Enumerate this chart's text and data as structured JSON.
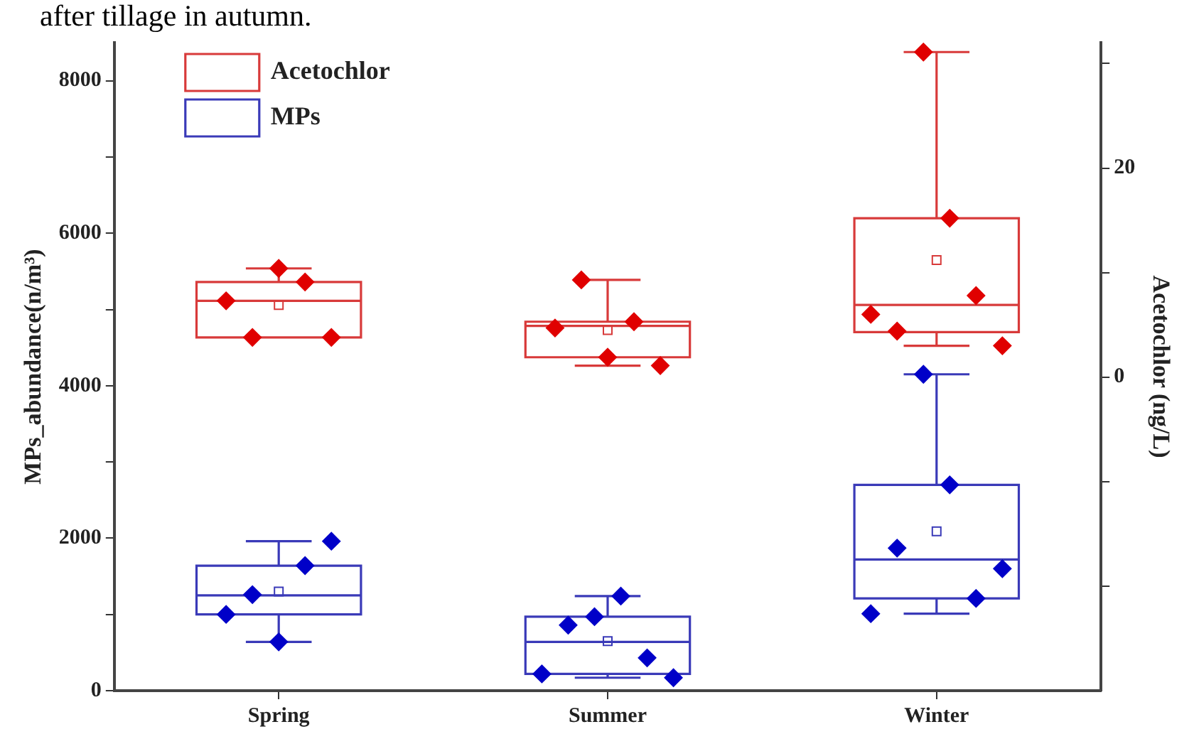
{
  "chart_data": {
    "type": "box",
    "annotations": [
      "after tillage in autumn."
    ],
    "ylabel": "MPs_abundance(n/m³)",
    "y2label": "Acetochlor (ng/L)",
    "categories": [
      "Spring",
      "Summer",
      "Winter"
    ],
    "ylim": [
      0,
      8500
    ],
    "yticks": [
      0,
      {
        "value": 1000,
        "label": null
      },
      2000,
      {
        "value": 3000,
        "label": null
      },
      4000,
      {
        "value": 5000,
        "label": null
      },
      6000,
      {
        "value": 7000,
        "label": null
      },
      8000
    ],
    "y2lim": [
      -30,
      32
    ],
    "y2ticks": [
      {
        "value": -20,
        "label": null
      },
      {
        "value": -10,
        "label": null
      },
      0,
      {
        "value": 10,
        "label": null
      },
      20,
      {
        "value": 30,
        "label": null
      }
    ],
    "grid": false,
    "legend": "top left",
    "marker": "diamond",
    "series": [
      {
        "name": "Acetochlor",
        "axis": "y2",
        "color": "#d83a3a",
        "boxes": [
          {
            "low": 3.8,
            "q1": 3.8,
            "median": 7.3,
            "q3": 9.1,
            "high": 10.4,
            "mean": 6.9
          },
          {
            "low": 1.1,
            "q1": 1.9,
            "median": 4.9,
            "q3": 5.3,
            "high": 9.3,
            "mean": 4.5
          },
          {
            "low": 3.0,
            "q1": 4.3,
            "median": 6.9,
            "q3": 15.2,
            "high": 31.1,
            "mean": 11.2
          }
        ]
      },
      {
        "name": "MPs",
        "color": "#3a3ab8",
        "boxes": [
          {
            "low": 640,
            "q1": 1000,
            "median": 1250,
            "q3": 1640,
            "high": 1960,
            "mean": 1300
          },
          {
            "low": 170,
            "q1": 220,
            "median": 640,
            "q3": 970,
            "high": 1240,
            "mean": 650
          },
          {
            "low": 1010,
            "q1": 1210,
            "median": 1720,
            "q3": 2700,
            "high": 4150,
            "mean": 2090
          }
        ]
      },
      {
        "type": "scatter",
        "axis": "y2",
        "color": "#e00000",
        "x": [
          "Spring",
          "Spring",
          "Spring",
          "Spring",
          "Spring",
          "Summer",
          "Summer",
          "Summer",
          "Summer",
          "Summer",
          "Winter",
          "Winter",
          "Winter",
          "Winter",
          "Winter",
          "Winter"
        ],
        "values": [
          7.3,
          3.8,
          10.4,
          9.1,
          3.8,
          4.7,
          9.3,
          1.9,
          5.3,
          1.1,
          6.0,
          4.4,
          31.1,
          15.2,
          7.8,
          3.0
        ]
      },
      {
        "type": "scatter",
        "color": "#0000c8",
        "x": [
          "Spring",
          "Spring",
          "Spring",
          "Spring",
          "Spring",
          "Summer",
          "Summer",
          "Summer",
          "Summer",
          "Summer",
          "Summer",
          "Winter",
          "Winter",
          "Winter",
          "Winter",
          "Winter",
          "Winter"
        ],
        "values": [
          1000,
          1260,
          640,
          1640,
          1960,
          220,
          860,
          970,
          1240,
          430,
          170,
          1010,
          1870,
          4150,
          2700,
          1210,
          1600
        ]
      }
    ]
  }
}
